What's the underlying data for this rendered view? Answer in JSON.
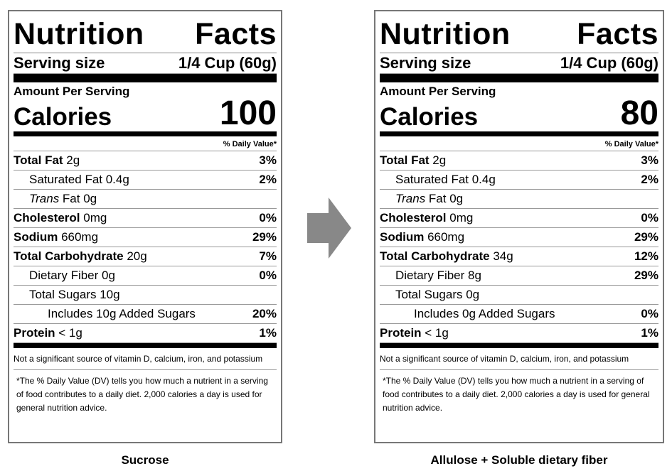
{
  "labels": [
    {
      "title_word1": "Nutrition",
      "title_word2": "Facts",
      "serving_label": "Serving size",
      "serving_value": "1/4 Cup (60g)",
      "amount_per_serving": "Amount Per Serving",
      "calories_label": "Calories",
      "calories_value": "100",
      "dv_header": "% Daily Value*",
      "rows": [
        {
          "bold": "Total Fat",
          "rest": " 2g",
          "pct": "3%"
        },
        {
          "bold": "",
          "rest": "Saturated Fat 0.4g",
          "pct": "2%"
        },
        {
          "italic": "Trans",
          "rest": " Fat 0g",
          "pct": ""
        },
        {
          "bold": "Cholesterol",
          "rest": " 0mg",
          "pct": "0%"
        },
        {
          "bold": "Sodium",
          "rest": " 660mg",
          "pct": "29%"
        },
        {
          "bold": "Total Carbohydrate",
          "rest": " 20g",
          "pct": "7%"
        },
        {
          "bold": "",
          "rest": "Dietary Fiber 0g",
          "pct": "0%"
        },
        {
          "bold": "",
          "rest": "Total Sugars 10g",
          "pct": ""
        },
        {
          "bold": "",
          "rest": "Includes 10g Added Sugars",
          "pct": "20%"
        },
        {
          "bold": "Protein",
          "rest": " < 1g",
          "pct": "1%"
        }
      ],
      "note1": "Not a significant source of vitamin D, calcium, iron, and potassium",
      "note2": "*The % Daily Value (DV) tells you how much a nutrient in a serving of food contributes to a daily diet. 2,000 calories a day is used for general nutrition advice.",
      "caption": "Sucrose"
    },
    {
      "title_word1": "Nutrition",
      "title_word2": "Facts",
      "serving_label": "Serving size",
      "serving_value": "1/4 Cup (60g)",
      "amount_per_serving": "Amount Per Serving",
      "calories_label": "Calories",
      "calories_value": "80",
      "dv_header": "% Daily Value*",
      "rows": [
        {
          "bold": "Total Fat",
          "rest": " 2g",
          "pct": "3%"
        },
        {
          "bold": "",
          "rest": "Saturated Fat 0.4g",
          "pct": "2%"
        },
        {
          "italic": "Trans",
          "rest": " Fat 0g",
          "pct": ""
        },
        {
          "bold": "Cholesterol",
          "rest": " 0mg",
          "pct": "0%"
        },
        {
          "bold": "Sodium",
          "rest": " 660mg",
          "pct": "29%"
        },
        {
          "bold": "Total Carbohydrate",
          "rest": " 34g",
          "pct": "12%"
        },
        {
          "bold": "",
          "rest": "Dietary Fiber 8g",
          "pct": "29%"
        },
        {
          "bold": "",
          "rest": "Total Sugars 0g",
          "pct": ""
        },
        {
          "bold": "",
          "rest": "Includes 0g Added Sugars",
          "pct": "0%"
        },
        {
          "bold": "Protein",
          "rest": " < 1g",
          "pct": "1%"
        }
      ],
      "note1": "Not a significant source of vitamin D, calcium, iron, and potassium",
      "note2": "*The % Daily Value (DV) tells you how much a nutrient in a serving of food contributes to a daily diet. 2,000 calories a day is used for general nutrition advice.",
      "caption": "Allulose + Soluble dietary fiber"
    }
  ],
  "arrow_icon": "right-arrow-icon",
  "arrow_color": "#888888"
}
